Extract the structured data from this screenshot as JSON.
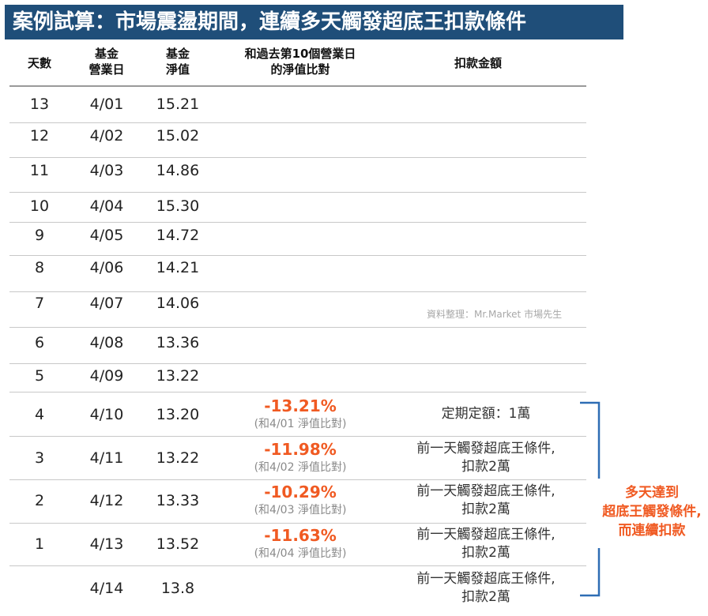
{
  "title": "案例試算：市場震盪期間，連續多天觸發超底王扣款條件",
  "headers": {
    "days": "天數",
    "date_line1": "基金",
    "date_line2": "營業日",
    "nav_line1": "基金",
    "nav_line2": "淨值",
    "compare_line1": "和過去第10個營業日",
    "compare_line2": "的淨值比對",
    "amount": "扣款金額"
  },
  "rows": [
    {
      "days": "13",
      "date": "4/01",
      "nav": "15.21"
    },
    {
      "days": "12",
      "date": "4/02",
      "nav": "15.02"
    },
    {
      "days": "11",
      "date": "4/03",
      "nav": "14.86"
    },
    {
      "days": "10",
      "date": "4/04",
      "nav": "15.30"
    },
    {
      "days": "9",
      "date": "4/05",
      "nav": "14.72"
    },
    {
      "days": "8",
      "date": "4/06",
      "nav": "14.21"
    },
    {
      "days": "7",
      "date": "4/07",
      "nav": "14.06"
    },
    {
      "days": "6",
      "date": "4/08",
      "nav": "13.36"
    },
    {
      "days": "5",
      "date": "4/09",
      "nav": "13.22"
    },
    {
      "days": "4",
      "date": "4/10",
      "nav": "13.20",
      "pct": "-13.21%",
      "cmp": "(和4/01 淨值比對)",
      "amount1": "定期定額：1萬"
    },
    {
      "days": "3",
      "date": "4/11",
      "nav": "13.22",
      "pct": "-11.98%",
      "cmp": "(和4/02 淨值比對)",
      "amount1": "前一天觸發超底王條件,",
      "amount2": "扣款2萬"
    },
    {
      "days": "2",
      "date": "4/12",
      "nav": "13.33",
      "pct": "-10.29%",
      "cmp": "(和4/03 淨值比對)",
      "amount1": "前一天觸發超底王條件,",
      "amount2": "扣款2萬"
    },
    {
      "days": "1",
      "date": "4/13",
      "nav": "13.52",
      "pct": "-11.63%",
      "cmp": "(和4/04 淨值比對)",
      "amount1": "前一天觸發超底王條件,",
      "amount2": "扣款2萬"
    },
    {
      "days": "",
      "date": "4/14",
      "nav": "13.8",
      "amount1": "前一天觸發超底王條件,",
      "amount2": "扣款2萬"
    }
  ],
  "source": "資料整理：Mr.Market 市場先生",
  "note": {
    "line1": "多天達到",
    "line2": "超底王觸發條件,",
    "line3": "而連續扣款"
  },
  "colors": {
    "title_bg": "#1f4e79",
    "highlight": "#f05a22",
    "bracket": "#2e6db4"
  }
}
